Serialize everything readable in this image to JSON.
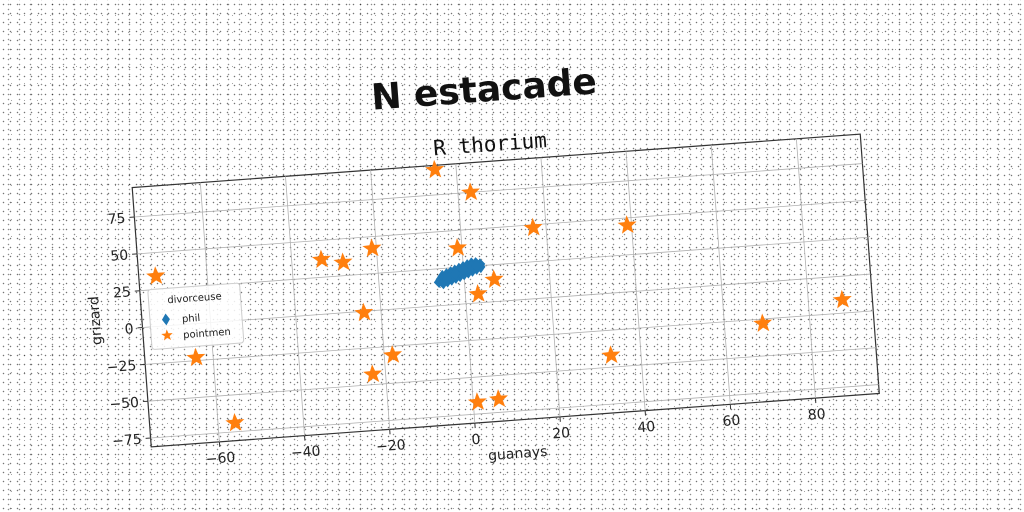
{
  "chart_data": {
    "type": "scatter",
    "suptitle": "N estacade",
    "title": "R thorium",
    "xlabel": "guanays",
    "ylabel": "grizard",
    "xlim": [
      -76,
      95
    ],
    "ylim": [
      -81,
      95
    ],
    "xticks": [
      -60,
      -40,
      -20,
      0,
      20,
      40,
      60,
      80
    ],
    "yticks": [
      -75,
      -50,
      -25,
      0,
      25,
      50,
      75
    ],
    "grid": true,
    "legend": {
      "title": "divorceuse",
      "placement": "center-left",
      "entries": [
        {
          "label": "phil",
          "marker": "diamond",
          "color": "#1f77b4"
        },
        {
          "label": "pointmen",
          "marker": "star",
          "color": "#ff7f0e"
        }
      ]
    },
    "series": [
      {
        "name": "phil",
        "color": "#1f77b4",
        "marker": "diamond",
        "points": [
          [
            -6,
            16
          ],
          [
            -5.5,
            18
          ],
          [
            -5,
            20
          ],
          [
            -4,
            21
          ],
          [
            -3,
            22
          ],
          [
            -2,
            23
          ],
          [
            -1,
            24
          ],
          [
            0,
            25
          ],
          [
            1,
            26
          ],
          [
            2,
            27
          ],
          [
            3,
            27
          ],
          [
            4,
            26
          ],
          [
            4,
            24
          ],
          [
            3,
            23
          ],
          [
            2,
            22
          ],
          [
            1,
            21
          ],
          [
            0,
            20
          ],
          [
            -1,
            19
          ],
          [
            -2,
            18
          ],
          [
            -3,
            17
          ],
          [
            -4,
            16
          ],
          [
            -5,
            15
          ],
          [
            -3,
            20
          ],
          [
            -1,
            22
          ],
          [
            1,
            24
          ],
          [
            2,
            25
          ],
          [
            0,
            23
          ],
          [
            -2,
            21
          ],
          [
            -4,
            18
          ],
          [
            3,
            25
          ]
        ]
      },
      {
        "name": "pointmen",
        "color": "#ff7f0e",
        "marker": "star",
        "points": [
          [
            -5,
            92
          ],
          [
            3,
            75
          ],
          [
            -72,
            34
          ],
          [
            -33,
            37
          ],
          [
            -28,
            34
          ],
          [
            -21,
            42
          ],
          [
            -1,
            38
          ],
          [
            17,
            48
          ],
          [
            39,
            45
          ],
          [
            -24,
            -1
          ],
          [
            3,
            6
          ],
          [
            7,
            15
          ],
          [
            -64,
            -23
          ],
          [
            -18,
            -31
          ],
          [
            -23,
            -43
          ],
          [
            33,
            -42
          ],
          [
            69,
            -28
          ],
          [
            88,
            -16
          ],
          [
            -56,
            -69
          ],
          [
            1,
            -67
          ],
          [
            6,
            -66
          ]
        ]
      }
    ]
  }
}
